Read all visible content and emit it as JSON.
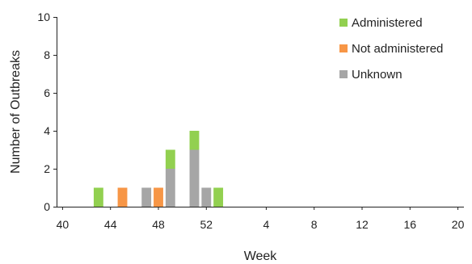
{
  "chart_data": {
    "type": "bar",
    "stacked": true,
    "title": "",
    "xlabel": "Week",
    "ylabel": "Number of Outbreaks",
    "ylim": [
      0,
      10
    ],
    "yticks": [
      0,
      2,
      4,
      6,
      8,
      10
    ],
    "categories": [
      "40",
      "41",
      "42",
      "43",
      "44",
      "45",
      "46",
      "47",
      "48",
      "49",
      "50",
      "51",
      "52",
      "53",
      "1",
      "2",
      "3",
      "4",
      "5",
      "6",
      "7",
      "8",
      "9",
      "10",
      "11",
      "12",
      "13",
      "14",
      "15",
      "16",
      "17",
      "18",
      "19",
      "20"
    ],
    "xtick_labels": [
      "40",
      "44",
      "48",
      "52",
      "4",
      "8",
      "12",
      "16",
      "20"
    ],
    "legend": "top-right",
    "grid": false,
    "series": [
      {
        "name": "Unknown",
        "color": "#a6a6a6",
        "values": [
          0,
          0,
          0,
          0,
          0,
          0,
          0,
          1,
          0,
          2,
          0,
          3,
          1,
          0,
          0,
          0,
          0,
          0,
          0,
          0,
          0,
          0,
          0,
          0,
          0,
          0,
          0,
          0,
          0,
          0,
          0,
          0,
          0,
          0
        ]
      },
      {
        "name": "Not administered",
        "color": "#f79646",
        "values": [
          0,
          0,
          0,
          0,
          0,
          1,
          0,
          0,
          1,
          0,
          0,
          0,
          0,
          0,
          0,
          0,
          0,
          0,
          0,
          0,
          0,
          0,
          0,
          0,
          0,
          0,
          0,
          0,
          0,
          0,
          0,
          0,
          0,
          0
        ]
      },
      {
        "name": "Administered",
        "color": "#92d050",
        "values": [
          0,
          0,
          0,
          1,
          0,
          0,
          0,
          0,
          0,
          1,
          0,
          1,
          0,
          1,
          0,
          0,
          0,
          0,
          0,
          0,
          0,
          0,
          0,
          0,
          0,
          0,
          0,
          0,
          0,
          0,
          0,
          0,
          0,
          0
        ]
      }
    ],
    "legend_order": [
      "Administered",
      "Not administered",
      "Unknown"
    ]
  }
}
